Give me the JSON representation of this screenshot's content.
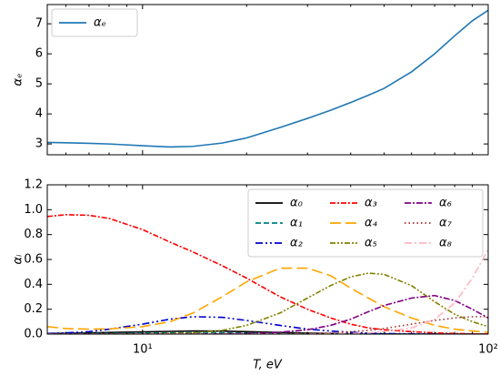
{
  "chart_data": [
    {
      "type": "line",
      "ylabel": "αₑ",
      "xscale": "log",
      "xlim": [
        5.3,
        100
      ],
      "ylim": [
        2.64,
        7.64
      ],
      "xticks": [
        10,
        100
      ],
      "yticks": [
        3,
        4,
        5,
        6,
        7
      ],
      "legend": "upper left",
      "legend_columns": 1,
      "x": [
        5.3,
        6,
        7,
        8,
        10,
        12,
        14,
        17,
        20,
        25,
        30,
        35,
        40,
        45,
        50,
        60,
        70,
        80,
        90,
        100
      ],
      "series": [
        {
          "name": "αₑ",
          "color": "#1f77b4",
          "dash": "none",
          "values": [
            3.05,
            3.04,
            3.02,
            3.0,
            2.94,
            2.9,
            2.92,
            3.03,
            3.2,
            3.55,
            3.85,
            4.12,
            4.38,
            4.62,
            4.85,
            5.4,
            6.0,
            6.6,
            7.1,
            7.45
          ]
        }
      ]
    },
    {
      "type": "line",
      "xlabel": "T, eV",
      "ylabel": "αᵢ",
      "xscale": "log",
      "xlim": [
        5.3,
        100
      ],
      "ylim": [
        0,
        1.2
      ],
      "xticks": [
        {
          "value": 10,
          "label": "10¹"
        },
        {
          "value": 100,
          "label": "10²"
        }
      ],
      "yticks": [
        {
          "value": 0,
          "label": "0.0"
        },
        0.2,
        0.4,
        0.6,
        0.8,
        {
          "value": 1,
          "label": "1.0"
        },
        1.2
      ],
      "legend": "upper right",
      "legend_columns": 3,
      "x": [
        5.3,
        6,
        7,
        8,
        10,
        12,
        14,
        17,
        20,
        25,
        30,
        35,
        40,
        45,
        50,
        60,
        70,
        80,
        90,
        100
      ],
      "series": [
        {
          "name": "α₀",
          "color": "#000000",
          "dash": "none",
          "values": [
            0.005,
            0.007,
            0.01,
            0.013,
            0.018,
            0.022,
            0.025,
            0.024,
            0.02,
            0.013,
            0.008,
            0.005,
            0.003,
            0.002,
            0.001,
            0,
            0,
            0,
            0,
            0
          ]
        },
        {
          "name": "α₁",
          "color": "#008080",
          "dash": "6,3",
          "values": [
            0.002,
            0.003,
            0.004,
            0.006,
            0.008,
            0.01,
            0.011,
            0.01,
            0.008,
            0.005,
            0.003,
            0.002,
            0.001,
            0.001,
            0,
            0,
            0,
            0,
            0,
            0
          ]
        },
        {
          "name": "α₂",
          "color": "#0000cc",
          "dash": "8,3,2,3,2,3",
          "values": [
            0.005,
            0.01,
            0.02,
            0.04,
            0.08,
            0.12,
            0.14,
            0.135,
            0.11,
            0.07,
            0.04,
            0.025,
            0.015,
            0.008,
            0.005,
            0.002,
            0.001,
            0,
            0,
            0
          ]
        },
        {
          "name": "α₃",
          "color": "#ff0000",
          "dash": "6,2,2,2",
          "values": [
            0.945,
            0.96,
            0.955,
            0.93,
            0.84,
            0.74,
            0.66,
            0.55,
            0.45,
            0.3,
            0.2,
            0.13,
            0.08,
            0.05,
            0.035,
            0.02,
            0.01,
            0.005,
            0.002,
            0.001
          ]
        },
        {
          "name": "α₄",
          "color": "#ffa500",
          "dash": "12,5",
          "values": [
            0.06,
            0.045,
            0.04,
            0.042,
            0.06,
            0.1,
            0.17,
            0.3,
            0.42,
            0.53,
            0.53,
            0.47,
            0.37,
            0.29,
            0.22,
            0.13,
            0.07,
            0.04,
            0.025,
            0.015
          ]
        },
        {
          "name": "α₅",
          "color": "#808000",
          "dash": "6,2,2,2,2,2",
          "values": [
            0,
            0,
            0,
            0,
            0.002,
            0.005,
            0.01,
            0.03,
            0.07,
            0.17,
            0.29,
            0.39,
            0.46,
            0.49,
            0.48,
            0.39,
            0.26,
            0.16,
            0.1,
            0.06
          ]
        },
        {
          "name": "α₆",
          "color": "#800080",
          "dash": "7,2,2,2",
          "values": [
            0,
            0,
            0,
            0,
            0,
            0,
            0,
            0.002,
            0.005,
            0.015,
            0.035,
            0.07,
            0.12,
            0.18,
            0.23,
            0.29,
            0.31,
            0.27,
            0.2,
            0.13
          ]
        },
        {
          "name": "α₇",
          "color": "#a52a2a",
          "dash": "1.5,3",
          "values": [
            0,
            0,
            0,
            0,
            0,
            0,
            0,
            0,
            0,
            0.002,
            0.005,
            0.01,
            0.02,
            0.03,
            0.045,
            0.08,
            0.11,
            0.13,
            0.14,
            0.14
          ]
        },
        {
          "name": "α₈",
          "color": "#ffb6c1",
          "dash": "8,3,2,3",
          "values": [
            0,
            0,
            0,
            0,
            0,
            0,
            0,
            0,
            0,
            0,
            0.001,
            0.003,
            0.006,
            0.01,
            0.02,
            0.05,
            0.12,
            0.25,
            0.45,
            0.68
          ]
        }
      ]
    }
  ]
}
